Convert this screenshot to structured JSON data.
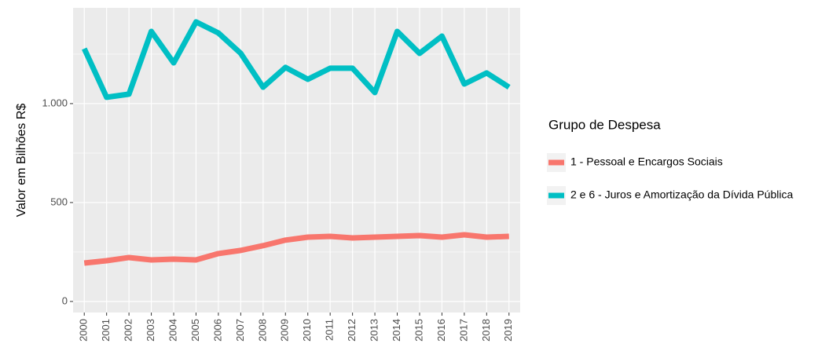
{
  "chart_data": {
    "type": "line",
    "y_label": "Valor em Bilhões R$",
    "legend_title": "Grupo de Despesa",
    "categories": [
      "2000",
      "2001",
      "2002",
      "2003",
      "2004",
      "2005",
      "2006",
      "2007",
      "2008",
      "2009",
      "2010",
      "2011",
      "2012",
      "2013",
      "2014",
      "2015",
      "2016",
      "2017",
      "2018",
      "2019"
    ],
    "series": [
      {
        "name": "1 - Pessoal e Encargos Sociais",
        "color": "#F8766D",
        "values": [
          194,
          206,
          222,
          210,
          214,
          210,
          242,
          258,
          282,
          310,
          325,
          329,
          321,
          325,
          329,
          333,
          325,
          337,
          325,
          329
        ]
      },
      {
        "name": "2 e 6 - Juros e Amortização da Dívida Pública",
        "color": "#00BFC4",
        "values": [
          1278,
          1032,
          1048,
          1365,
          1206,
          1413,
          1357,
          1254,
          1083,
          1183,
          1123,
          1179,
          1179,
          1056,
          1365,
          1254,
          1341,
          1099,
          1155,
          1083
        ]
      }
    ],
    "ylim": [
      -56,
      1484
    ],
    "yticks": [
      0,
      500,
      {
        "value": 1000,
        "label": "1.000"
      }
    ],
    "grid": true
  }
}
